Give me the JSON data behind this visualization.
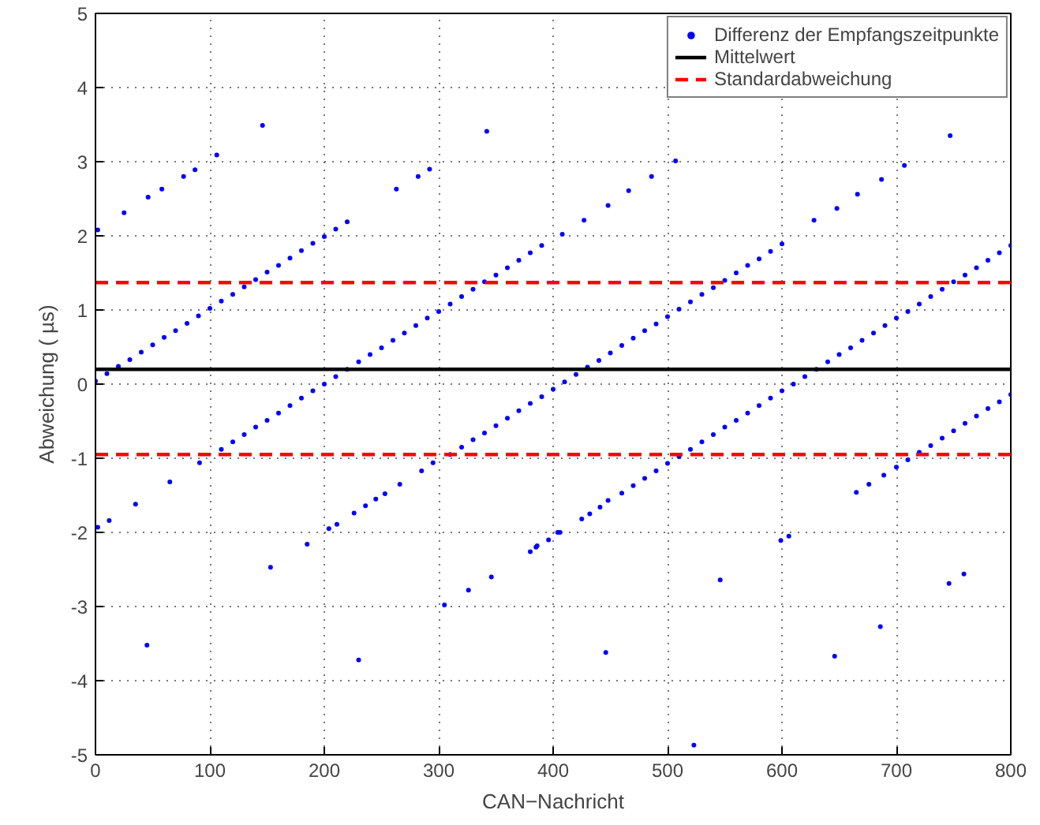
{
  "chart_data": {
    "type": "scatter",
    "xlabel": "CAN−Nachricht",
    "ylabel": "Abweichung ( µs)",
    "xlim": [
      0,
      800
    ],
    "ylim": [
      -5,
      5
    ],
    "xticks": [
      0,
      100,
      200,
      300,
      400,
      500,
      600,
      700,
      800
    ],
    "yticks": [
      -5,
      -4,
      -3,
      -2,
      -1,
      0,
      1,
      2,
      3,
      4,
      5
    ],
    "grid": true,
    "legend": "top right",
    "marker": "circle",
    "series": [
      {
        "name": "Differenz der Empfangszeitpunkte",
        "color": "#0000ff",
        "x": [
          0,
          10,
          20,
          30,
          40,
          50,
          60,
          70,
          80,
          90,
          100,
          110,
          120,
          130,
          140,
          150,
          160,
          170,
          180,
          190,
          200,
          210,
          220,
          2,
          25,
          46,
          58,
          77,
          87,
          106,
          146,
          263,
          282,
          292,
          342,
          65,
          91,
          110,
          120,
          130,
          140,
          150,
          160,
          170,
          180,
          190,
          200,
          210,
          220,
          230,
          240,
          250,
          260,
          270,
          280,
          290,
          300,
          310,
          320,
          330,
          340,
          350,
          360,
          370,
          380,
          390,
          408,
          427,
          448,
          466,
          486,
          507,
          2,
          12,
          35,
          45,
          153,
          185,
          204,
          211,
          226,
          236,
          245,
          253,
          266,
          285,
          295,
          230,
          305,
          326,
          346,
          380,
          385,
          396,
          404,
          310,
          320,
          330,
          340,
          350,
          360,
          370,
          380,
          390,
          400,
          410,
          420,
          430,
          440,
          450,
          460,
          470,
          480,
          490,
          500,
          510,
          520,
          530,
          540,
          550,
          560,
          570,
          580,
          590,
          600,
          628,
          648,
          666,
          687,
          707,
          747,
          386,
          406,
          425,
          432,
          441,
          448,
          446,
          546,
          523,
          599,
          606,
          646,
          686,
          746,
          759,
          460,
          470,
          480,
          490,
          500,
          510,
          520,
          530,
          540,
          550,
          560,
          570,
          580,
          590,
          600,
          610,
          620,
          630,
          640,
          650,
          660,
          670,
          680,
          690,
          700,
          710,
          720,
          730,
          740,
          750,
          760,
          770,
          780,
          790,
          800,
          665,
          676,
          689,
          700,
          710,
          720,
          730,
          740,
          750,
          760,
          770,
          780,
          790,
          800
        ],
        "values": [
          0.04,
          0.14,
          0.24,
          0.33,
          0.43,
          0.53,
          0.63,
          0.72,
          0.82,
          0.92,
          1.02,
          1.12,
          1.21,
          1.31,
          1.41,
          1.51,
          1.6,
          1.7,
          1.8,
          1.9,
          1.99,
          2.09,
          2.19,
          2.08,
          2.31,
          2.52,
          2.63,
          2.8,
          2.89,
          3.09,
          3.49,
          2.63,
          2.8,
          2.9,
          3.41,
          -1.32,
          -1.06,
          -0.88,
          -0.78,
          -0.68,
          -0.58,
          -0.49,
          -0.39,
          -0.29,
          -0.19,
          -0.09,
          0.0,
          0.1,
          0.2,
          0.3,
          0.4,
          0.49,
          0.59,
          0.69,
          0.79,
          0.89,
          0.98,
          1.08,
          1.18,
          1.28,
          1.38,
          1.47,
          1.57,
          1.67,
          1.77,
          1.87,
          2.02,
          2.21,
          2.41,
          2.61,
          2.8,
          3.01,
          -1.93,
          -1.84,
          -1.62,
          -3.52,
          -2.47,
          -2.16,
          -1.95,
          -1.89,
          -1.74,
          -1.64,
          -1.55,
          -1.48,
          -1.35,
          -1.17,
          -1.06,
          -3.72,
          -2.98,
          -2.78,
          -2.6,
          -2.26,
          -2.2,
          -2.1,
          -2.0,
          -0.95,
          -0.85,
          -0.75,
          -0.66,
          -0.56,
          -0.46,
          -0.36,
          -0.26,
          -0.17,
          -0.07,
          0.03,
          0.13,
          0.23,
          0.32,
          0.42,
          0.52,
          0.62,
          0.72,
          0.81,
          0.91,
          1.01,
          1.11,
          1.21,
          1.3,
          1.4,
          1.5,
          1.6,
          1.69,
          1.79,
          1.89,
          2.21,
          2.37,
          2.56,
          2.76,
          2.95,
          3.35,
          -2.18,
          -2.0,
          -1.82,
          -1.75,
          -1.66,
          -1.57,
          -3.62,
          -2.64,
          -4.87,
          -2.11,
          -2.05,
          -3.67,
          -3.27,
          -2.69,
          -2.56,
          -1.47,
          -1.37,
          -1.27,
          -1.17,
          -1.07,
          -0.98,
          -0.88,
          -0.78,
          -0.68,
          -0.58,
          -0.49,
          -0.39,
          -0.29,
          -0.19,
          -0.09,
          0.0,
          0.1,
          0.2,
          0.3,
          0.4,
          0.49,
          0.59,
          0.69,
          0.79,
          0.89,
          0.98,
          1.08,
          1.18,
          1.28,
          1.38,
          1.47,
          1.57,
          1.67,
          1.77,
          1.87,
          -1.46,
          -1.35,
          -1.23,
          -1.12,
          -1.02,
          -0.92,
          -0.83,
          -0.73,
          -0.63,
          -0.53,
          -0.43,
          -0.33,
          -0.24,
          -0.14
        ]
      }
    ],
    "ref_lines": [
      {
        "axis": "y",
        "value": 0.2,
        "label": "Mittelwert",
        "color": "#000000",
        "line_style": "solid"
      },
      {
        "axis": "y",
        "value": 1.37,
        "label": "Standardabweichung",
        "color": "#ff0000",
        "line_style": "dashed"
      },
      {
        "axis": "y",
        "value": -0.95,
        "color": "#ff0000",
        "line_style": "dashed"
      }
    ]
  }
}
